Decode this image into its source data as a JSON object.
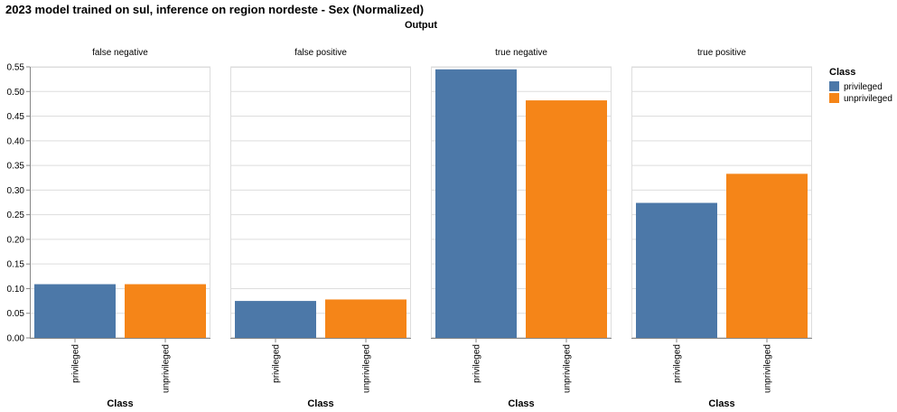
{
  "chart_data": {
    "type": "bar",
    "title": "2023 model trained on sul, inference on region nordeste - Sex (Normalized)",
    "column_title": "Output",
    "xlabel": "Class",
    "ylabel": "",
    "ylim": [
      0,
      0.55
    ],
    "yticks": [
      0,
      0.05,
      0.1,
      0.15,
      0.2,
      0.25,
      0.3,
      0.35,
      0.4,
      0.45,
      0.5,
      0.55
    ],
    "grid": true,
    "legend_title": "Class",
    "legend_position": "top-right",
    "categories": [
      "privileged",
      "unprivileged"
    ],
    "colors": {
      "privileged": "#4c78a8",
      "unprivileged": "#f58518"
    },
    "facets": [
      {
        "name": "false negative",
        "values": [
          0.109,
          0.109
        ]
      },
      {
        "name": "false positive",
        "values": [
          0.075,
          0.078
        ]
      },
      {
        "name": "true negative",
        "values": [
          0.545,
          0.482
        ]
      },
      {
        "name": "true positive",
        "values": [
          0.274,
          0.333
        ]
      }
    ]
  }
}
